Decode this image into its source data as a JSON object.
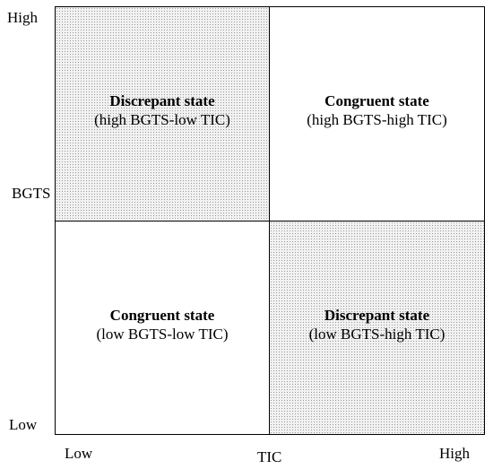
{
  "y_axis": {
    "high": "High",
    "label": "BGTS",
    "low": "Low"
  },
  "x_axis": {
    "low": "Low",
    "label": "TIC",
    "high": "High"
  },
  "quadrants": {
    "top_left": {
      "title": "Discrepant state",
      "subtitle": "(high BGTS-low TIC)",
      "shaded": true
    },
    "top_right": {
      "title": "Congruent state",
      "subtitle": "(high BGTS-high TIC)",
      "shaded": false
    },
    "bottom_left": {
      "title": "Congruent state",
      "subtitle": "(low BGTS-low TIC)",
      "shaded": false
    },
    "bottom_right": {
      "title": "Discrepant state",
      "subtitle": "(low BGTS-high TIC)",
      "shaded": true
    }
  },
  "colors": {
    "line": "#000000",
    "shade_fill": "#f2f2f2",
    "shade_dot": "#9a9a9a"
  }
}
